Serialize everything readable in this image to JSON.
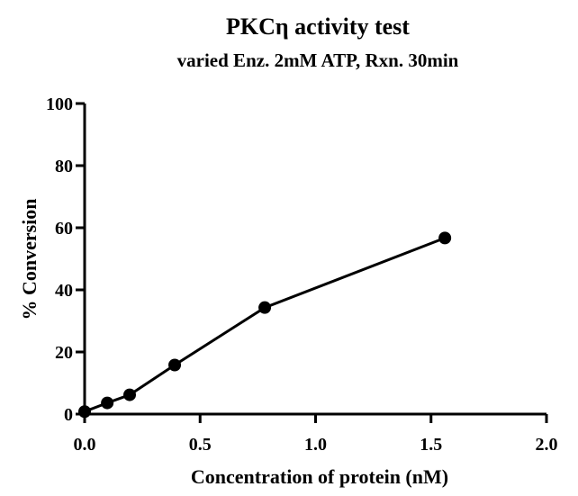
{
  "chart_data": {
    "type": "line",
    "title": "PKCη activity test",
    "subtitle": "varied Enz. 2mM ATP, Rxn. 30min",
    "xlabel": "Concentration of protein (nM)",
    "ylabel": "% Conversion",
    "xlim": [
      0,
      2.0
    ],
    "ylim": [
      0,
      100
    ],
    "xticks": [
      "0.0",
      "0.5",
      "1.0",
      "1.5",
      "2.0"
    ],
    "xtick_values": [
      0,
      0.5,
      1.0,
      1.5,
      2.0
    ],
    "yticks": [
      "0",
      "20",
      "40",
      "60",
      "80",
      "100"
    ],
    "ytick_values": [
      0,
      20,
      40,
      60,
      80,
      100
    ],
    "grid": false,
    "series": [
      {
        "x": [
          0,
          0.098,
          0.195,
          0.39,
          0.78,
          1.56
        ],
        "y": [
          0.8,
          3.6,
          6.2,
          15.8,
          34.3,
          56.7
        ],
        "marker": "circle",
        "color": "#000000"
      }
    ]
  }
}
